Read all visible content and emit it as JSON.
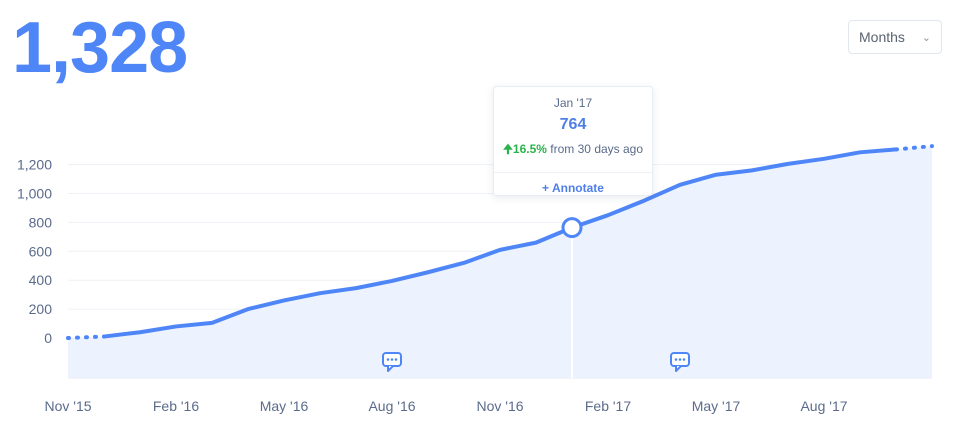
{
  "header": {
    "total": "1,328",
    "period_select": {
      "value": "Months"
    }
  },
  "tooltip": {
    "date": "Jan '17",
    "value": "764",
    "change_pct": "16.5%",
    "change_text": "from 30 days ago",
    "annotate_label": "+ Annotate"
  },
  "colors": {
    "accent": "#4f86f7",
    "line": "#4f86f7",
    "area": "#edf3fe",
    "positive": "#2bb34b",
    "axis_text": "#5b6b8c"
  },
  "icons": [
    "chevron-down-icon",
    "arrow-up-icon",
    "comment-icon"
  ],
  "chart_data": {
    "type": "area",
    "title": "",
    "xlabel": "",
    "ylabel": "",
    "ylim": [
      -200,
      1300
    ],
    "yticks": [
      0,
      200,
      400,
      600,
      800,
      1000,
      1200
    ],
    "ytick_labels": [
      "0",
      "200",
      "400",
      "600",
      "800",
      "1,000",
      "1,200"
    ],
    "xtick_labels": [
      "Nov '15",
      "Feb '16",
      "May '16",
      "Aug '16",
      "Nov '16",
      "Feb '17",
      "May '17",
      "Aug '17"
    ],
    "x": [
      "Nov '15",
      "Dec '15",
      "Jan '16",
      "Feb '16",
      "Mar '16",
      "Apr '16",
      "May '16",
      "Jun '16",
      "Jul '16",
      "Aug '16",
      "Sep '16",
      "Oct '16",
      "Nov '16",
      "Dec '16",
      "Jan '17",
      "Feb '17",
      "Mar '17",
      "Apr '17",
      "May '17",
      "Jun '17",
      "Jul '17",
      "Aug '17",
      "Sep '17",
      "Oct '17",
      "Nov '17"
    ],
    "series": [
      {
        "values": [
          0,
          10,
          40,
          80,
          105,
          200,
          260,
          310,
          345,
          395,
          455,
          520,
          610,
          660,
          764,
          850,
          950,
          1060,
          1130,
          1160,
          1205,
          1240,
          1285,
          1305,
          1328
        ],
        "partial_start": 2,
        "partial_end": 1
      }
    ],
    "highlight": {
      "x": "Jan '17",
      "y": 764
    },
    "annotation_markers": [
      "Aug '16",
      "Apr '17"
    ],
    "grid": true
  }
}
